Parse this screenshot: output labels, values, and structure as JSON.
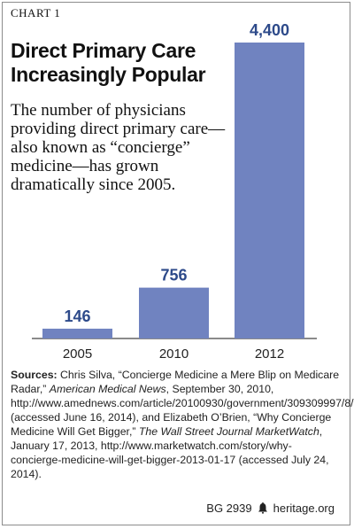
{
  "header": {
    "chart_label": "CHART 1",
    "title_line1": "Direct Primary Care",
    "title_line2": "Increasingly Popular",
    "description": "The number of physicians providing direct primary care—also known as “concierge” medicine—has grown dramatically since 2005."
  },
  "chart_data": {
    "type": "bar",
    "categories": [
      "2005",
      "2010",
      "2012"
    ],
    "values": [
      146,
      756,
      4400
    ],
    "value_labels": [
      "146",
      "756",
      "4,400"
    ],
    "title": "Direct Primary Care Increasingly Popular",
    "xlabel": "",
    "ylabel": "",
    "ylim": [
      0,
      4400
    ],
    "grid": false,
    "legend": "none",
    "bar_color": "#7083c0",
    "label_color": "#2d4a8a"
  },
  "sources": {
    "label": "Sources:",
    "part1": " Chris Silva, “Concierge Medicine a Mere Blip on Medicare Radar,” ",
    "journal1": "American Medical News",
    "part2": ", September 30, 2010, http://www.amednews.com/article/20100930/government/309309997/8/ (accessed June 16, 2014), and Elizabeth O’Brien, “Why Concierge Medicine Will Get Bigger,” ",
    "journal2": "The Wall Street Journal MarketWatch",
    "part3": ", January 17, 2013, http://www.marketwatch.com/story/why-concierge-medicine-will-get-bigger-2013-01-17 (accessed July 24, 2014)."
  },
  "footer": {
    "code": "BG 2939",
    "site": "heritage.org",
    "logo_icon": "liberty-bell-icon"
  }
}
